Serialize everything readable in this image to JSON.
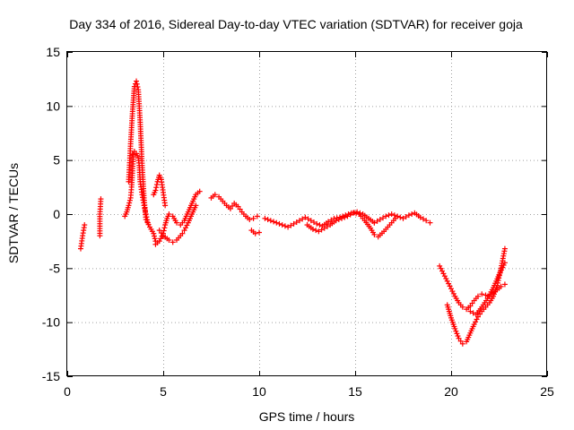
{
  "chart_data": {
    "type": "scatter",
    "title": "Day 334 of 2016, Sidereal Day-to-day VTEC variation (SDTVAR) for receiver goja",
    "xlabel": "GPS time / hours",
    "ylabel": "SDTVAR / TECUs",
    "xlim": [
      0,
      25
    ],
    "ylim": [
      -15,
      15
    ],
    "xticks": [
      0,
      5,
      10,
      15,
      20,
      25
    ],
    "yticks": [
      -15,
      -10,
      -5,
      0,
      5,
      10,
      15
    ],
    "grid": true,
    "marker": "+",
    "color": "#ff0000",
    "series": [
      {
        "name": "tr1",
        "x": [
          0.7,
          0.8,
          0.9
        ],
        "y": [
          -3.2,
          -2.0,
          -1.0
        ]
      },
      {
        "name": "tr2",
        "x": [
          1.7,
          1.7,
          1.75
        ],
        "y": [
          -2.0,
          0.0,
          1.4
        ]
      },
      {
        "name": "tr3",
        "x": [
          3.0,
          3.1,
          3.2,
          3.3,
          3.35,
          3.4,
          3.45
        ],
        "y": [
          -0.2,
          0.2,
          0.8,
          1.5,
          2.5,
          4.0,
          5.5
        ]
      },
      {
        "name": "tr4",
        "x": [
          3.2,
          3.3,
          3.4,
          3.5,
          3.6,
          3.7,
          3.8,
          3.9,
          4.0,
          4.1,
          4.3,
          4.5,
          4.6
        ],
        "y": [
          3.0,
          6.5,
          9.5,
          11.8,
          12.3,
          11.5,
          8.5,
          4.5,
          1.5,
          -0.5,
          -1.2,
          -1.8,
          -2.5
        ]
      },
      {
        "name": "tr5",
        "x": [
          3.4,
          3.5,
          3.6,
          3.7,
          3.75,
          3.8,
          3.9,
          4.0,
          4.1,
          4.2
        ],
        "y": [
          5.5,
          5.8,
          5.6,
          5.2,
          4.5,
          3.0,
          1.8,
          0.8,
          0.0,
          -0.8
        ]
      },
      {
        "name": "tr6",
        "x": [
          4.5,
          4.6,
          4.7,
          4.8,
          4.9,
          5.0,
          5.1
        ],
        "y": [
          1.8,
          2.2,
          3.0,
          3.6,
          3.2,
          2.0,
          0.8
        ]
      },
      {
        "name": "tr7",
        "x": [
          4.6,
          4.8,
          5.0,
          5.1,
          5.2,
          5.3,
          5.5,
          5.7,
          5.9,
          6.1,
          6.3,
          6.5,
          6.7,
          6.9
        ],
        "y": [
          -2.8,
          -2.5,
          -1.8,
          -1.0,
          -0.4,
          0.0,
          -0.2,
          -0.8,
          -1.0,
          -0.6,
          0.2,
          1.0,
          1.8,
          2.1
        ]
      },
      {
        "name": "tr8",
        "x": [
          4.8,
          5.0,
          5.3,
          5.5,
          5.7,
          5.9,
          6.0,
          6.1,
          6.3,
          6.5,
          6.7
        ],
        "y": [
          -1.5,
          -2.0,
          -2.4,
          -2.6,
          -2.4,
          -2.0,
          -1.8,
          -1.5,
          -0.8,
          0.0,
          0.8
        ]
      },
      {
        "name": "tr9",
        "x": [
          7.5,
          7.7,
          7.9,
          8.1,
          8.3,
          8.5,
          8.7,
          8.9,
          9.1,
          9.3,
          9.5,
          9.7,
          9.9
        ],
        "y": [
          1.5,
          1.8,
          1.6,
          1.2,
          0.8,
          0.5,
          1.0,
          0.7,
          0.2,
          -0.2,
          -0.5,
          -0.4,
          -0.2
        ]
      },
      {
        "name": "tr10",
        "x": [
          9.6,
          9.8,
          10.0
        ],
        "y": [
          -1.5,
          -1.8,
          -1.7
        ]
      },
      {
        "name": "tr11",
        "x": [
          10.3,
          10.6,
          10.9,
          11.2,
          11.5,
          11.8,
          12.1,
          12.4,
          12.7,
          13.0,
          13.3,
          13.6,
          13.9,
          14.2,
          14.5,
          14.8,
          15.1,
          15.4,
          15.7,
          16.0
        ],
        "y": [
          -0.4,
          -0.6,
          -0.8,
          -1.0,
          -1.2,
          -0.9,
          -0.6,
          -0.3,
          -0.6,
          -0.9,
          -1.1,
          -0.7,
          -0.4,
          -0.3,
          -0.1,
          0.1,
          0.2,
          0.0,
          -0.4,
          -0.8
        ]
      },
      {
        "name": "tr12",
        "x": [
          12.5,
          12.8,
          13.1,
          13.4,
          13.7,
          14.0,
          14.3,
          14.6,
          14.9,
          15.2,
          15.5,
          15.8,
          16.0,
          16.2,
          16.5,
          16.8,
          17.1
        ],
        "y": [
          -1.0,
          -1.4,
          -1.6,
          -1.3,
          -1.0,
          -0.6,
          -0.4,
          -0.2,
          0.1,
          0.0,
          -0.6,
          -1.3,
          -1.9,
          -2.1,
          -1.6,
          -1.0,
          -0.4
        ]
      },
      {
        "name": "tr13",
        "x": [
          16.0,
          16.3,
          16.6,
          16.9,
          17.2,
          17.5,
          17.8,
          18.1,
          18.4,
          18.7,
          18.9
        ],
        "y": [
          -0.8,
          -0.5,
          -0.2,
          0.0,
          -0.2,
          -0.4,
          -0.1,
          0.1,
          -0.3,
          -0.6,
          -0.8
        ]
      },
      {
        "name": "tr14",
        "x": [
          19.4,
          19.6,
          19.8,
          20.0,
          20.2,
          20.4,
          20.6,
          20.8,
          21.0,
          21.2,
          21.4,
          21.6,
          21.8,
          22.0,
          22.2,
          22.4,
          22.6,
          22.8
        ],
        "y": [
          -4.8,
          -5.5,
          -6.2,
          -6.9,
          -7.6,
          -8.2,
          -8.6,
          -8.8,
          -8.5,
          -8.0,
          -7.6,
          -7.4,
          -7.5,
          -7.6,
          -7.3,
          -7.0,
          -6.7,
          -6.5
        ]
      },
      {
        "name": "tr15",
        "x": [
          19.8,
          20.0,
          20.2,
          20.4,
          20.6,
          20.8,
          21.0,
          21.2,
          21.4,
          21.6,
          21.8,
          22.0,
          22.2,
          22.4,
          22.6,
          22.8
        ],
        "y": [
          -8.4,
          -9.6,
          -10.6,
          -11.5,
          -12.0,
          -11.8,
          -11.0,
          -10.2,
          -9.5,
          -9.0,
          -8.6,
          -8.2,
          -7.6,
          -6.6,
          -5.0,
          -3.2
        ]
      },
      {
        "name": "tr16",
        "x": [
          21.0,
          21.3,
          21.6,
          21.9,
          22.2,
          22.5,
          22.8
        ],
        "y": [
          -9.0,
          -9.3,
          -8.6,
          -7.8,
          -6.8,
          -5.6,
          -4.5
        ]
      }
    ]
  }
}
